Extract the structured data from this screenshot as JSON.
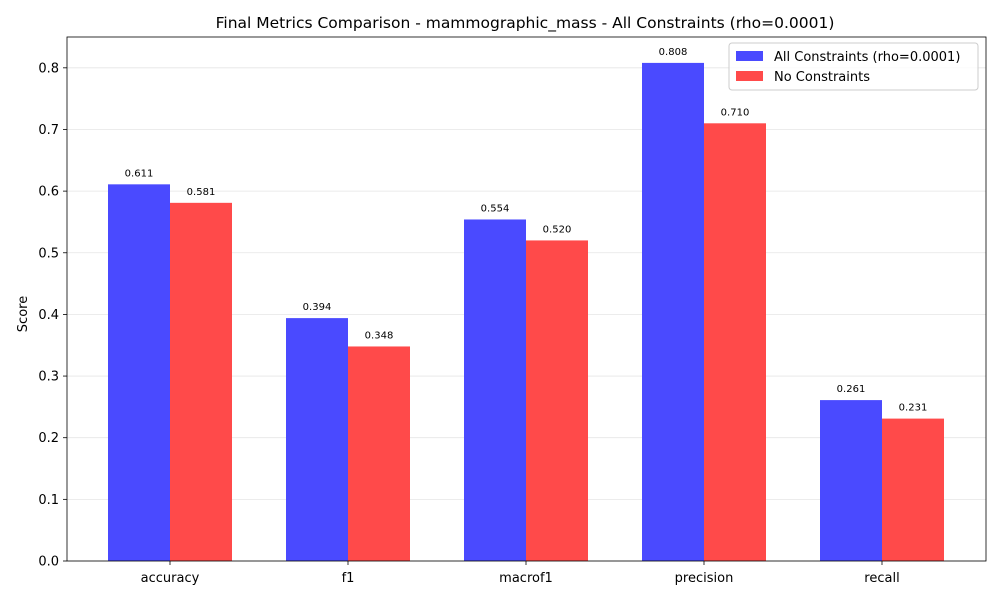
{
  "chart_data": {
    "type": "bar",
    "title": "Final Metrics Comparison - mammographic_mass - All Constraints (rho=0.0001)",
    "xlabel": "",
    "ylabel": "Score",
    "ylim": [
      0,
      0.85
    ],
    "yticks": [
      0.0,
      0.1,
      0.2,
      0.3,
      0.4,
      0.5,
      0.6,
      0.7,
      0.8
    ],
    "categories": [
      "accuracy",
      "f1",
      "macrof1",
      "precision",
      "recall"
    ],
    "series": [
      {
        "name": "All Constraints (rho=0.0001)",
        "color": "#4a4aff",
        "values": [
          0.611,
          0.394,
          0.554,
          0.808,
          0.261
        ],
        "labels": [
          "0.611",
          "0.394",
          "0.554",
          "0.808",
          "0.261"
        ]
      },
      {
        "name": "No Constraints",
        "color": "#ff4a4a",
        "values": [
          0.581,
          0.348,
          0.52,
          0.71,
          0.231
        ],
        "labels": [
          "0.581",
          "0.348",
          "0.520",
          "0.710",
          "0.231"
        ]
      }
    ],
    "grid": "y",
    "legend": "top-right"
  }
}
